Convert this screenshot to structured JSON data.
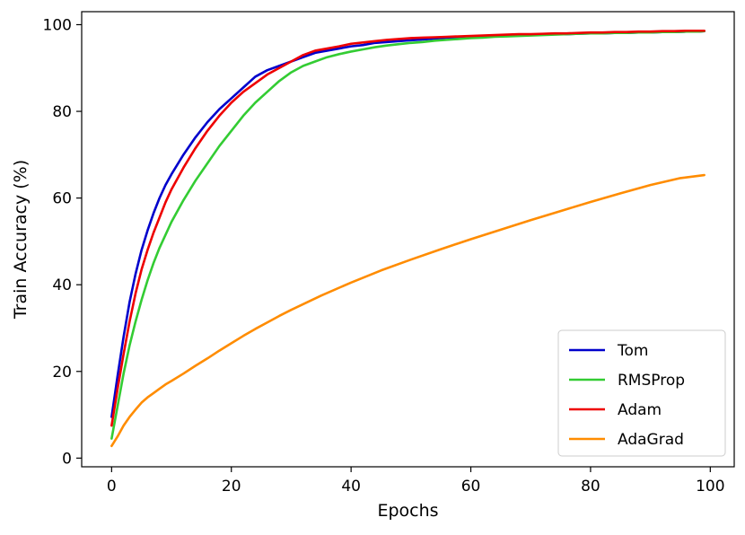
{
  "chart_data": {
    "type": "line",
    "title": "",
    "xlabel": "Epochs",
    "ylabel": "Train Accuracy (%)",
    "xlim": [
      -5,
      104
    ],
    "ylim": [
      -2,
      103
    ],
    "xticks": [
      0,
      20,
      40,
      60,
      80,
      100
    ],
    "yticks": [
      0,
      20,
      40,
      60,
      80,
      100
    ],
    "grid": false,
    "legend_position": "lower-right",
    "series": [
      {
        "name": "Tom",
        "color": "#0000cc",
        "x": [
          0,
          1,
          2,
          3,
          4,
          5,
          6,
          7,
          8,
          9,
          10,
          12,
          14,
          16,
          18,
          20,
          22,
          24,
          26,
          28,
          30,
          32,
          34,
          36,
          38,
          40,
          42,
          44,
          46,
          48,
          50,
          52,
          54,
          56,
          58,
          60,
          62,
          64,
          66,
          68,
          70,
          72,
          74,
          76,
          78,
          80,
          82,
          84,
          86,
          88,
          90,
          92,
          94,
          96,
          98,
          99
        ],
        "values": [
          9.5,
          19,
          28,
          36,
          42.5,
          48,
          52.5,
          56.5,
          60,
          63,
          65.5,
          70,
          74,
          77.5,
          80.5,
          83,
          85.5,
          88,
          89.5,
          90.5,
          91.5,
          92.5,
          93.5,
          94,
          94.5,
          95,
          95.3,
          95.8,
          96,
          96.2,
          96.4,
          96.6,
          96.8,
          97,
          97.1,
          97.2,
          97.3,
          97.4,
          97.5,
          97.5,
          97.6,
          97.7,
          97.8,
          97.8,
          97.9,
          98,
          98,
          98.1,
          98.1,
          98.2,
          98.2,
          98.3,
          98.3,
          98.4,
          98.4,
          98.5
        ]
      },
      {
        "name": "RMSProp",
        "color": "#33cc33",
        "x": [
          0,
          1,
          2,
          3,
          4,
          5,
          6,
          7,
          8,
          9,
          10,
          12,
          14,
          16,
          18,
          20,
          22,
          24,
          26,
          28,
          30,
          32,
          34,
          36,
          38,
          40,
          42,
          44,
          46,
          48,
          50,
          52,
          54,
          56,
          58,
          60,
          62,
          64,
          66,
          68,
          70,
          72,
          74,
          76,
          78,
          80,
          82,
          84,
          86,
          88,
          90,
          92,
          94,
          96,
          98,
          99
        ],
        "values": [
          4.5,
          12,
          19.5,
          26,
          31.5,
          36.5,
          41,
          45,
          48.5,
          51.5,
          54.5,
          59.5,
          64,
          68,
          72,
          75.5,
          79,
          82,
          84.5,
          87,
          89,
          90.5,
          91.5,
          92.5,
          93.2,
          93.8,
          94.3,
          94.8,
          95.2,
          95.5,
          95.8,
          96,
          96.3,
          96.5,
          96.7,
          96.9,
          97,
          97.2,
          97.3,
          97.4,
          97.5,
          97.6,
          97.7,
          97.8,
          97.9,
          98,
          98,
          98.1,
          98.1,
          98.2,
          98.2,
          98.3,
          98.3,
          98.4,
          98.4,
          98.5
        ]
      },
      {
        "name": "Adam",
        "color": "#ee0000",
        "x": [
          0,
          1,
          2,
          3,
          4,
          5,
          6,
          7,
          8,
          9,
          10,
          12,
          14,
          16,
          18,
          20,
          22,
          24,
          26,
          28,
          30,
          32,
          34,
          36,
          38,
          40,
          42,
          44,
          46,
          48,
          50,
          52,
          54,
          56,
          58,
          60,
          62,
          64,
          66,
          68,
          70,
          72,
          74,
          76,
          78,
          80,
          82,
          84,
          86,
          88,
          90,
          92,
          94,
          96,
          98,
          99
        ],
        "values": [
          7.5,
          16,
          24,
          31.5,
          38,
          43.5,
          48,
          52,
          55.5,
          59,
          62,
          67,
          71.5,
          75.5,
          79,
          82,
          84.5,
          86.5,
          88.5,
          90,
          91.5,
          93,
          94,
          94.5,
          95,
          95.6,
          95.9,
          96.2,
          96.5,
          96.7,
          96.9,
          97,
          97.1,
          97.2,
          97.3,
          97.4,
          97.5,
          97.6,
          97.7,
          97.8,
          97.8,
          97.9,
          98,
          98,
          98.1,
          98.2,
          98.2,
          98.3,
          98.3,
          98.4,
          98.4,
          98.5,
          98.5,
          98.6,
          98.6,
          98.6
        ]
      },
      {
        "name": "AdaGrad",
        "color": "#ff8c00",
        "x": [
          0,
          1,
          2,
          3,
          4,
          5,
          6,
          7,
          8,
          9,
          10,
          12,
          14,
          16,
          18,
          20,
          22,
          24,
          26,
          28,
          30,
          35,
          40,
          45,
          50,
          55,
          60,
          65,
          70,
          75,
          80,
          85,
          90,
          95,
          99
        ],
        "values": [
          2.8,
          5,
          7.5,
          9.5,
          11.2,
          12.8,
          14,
          15,
          16,
          17,
          17.8,
          19.5,
          21.3,
          23,
          24.8,
          26.5,
          28.2,
          29.8,
          31.3,
          32.8,
          34.2,
          37.5,
          40.5,
          43.3,
          45.8,
          48.2,
          50.5,
          52.7,
          54.9,
          57,
          59.1,
          61.1,
          63,
          64.6,
          65.3
        ]
      }
    ]
  }
}
